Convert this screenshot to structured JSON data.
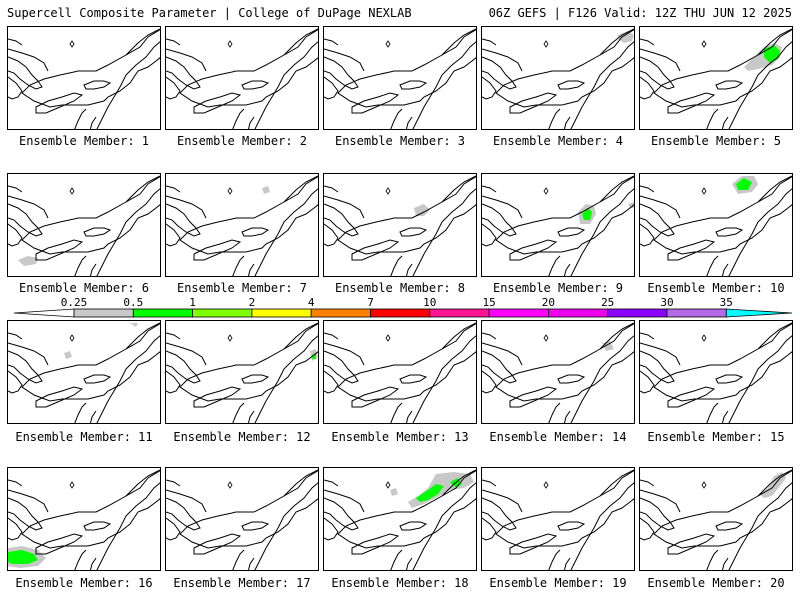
{
  "header": {
    "left_title": "Supercell Composite Parameter | College of DuPage NEXLAB",
    "right_title": "06Z GEFS | F126 Valid: 12Z THU JUN 12 2025"
  },
  "caption_prefix": "Ensemble Member:",
  "members": [
    {
      "num": "1",
      "label": "Ensemble Member: 1",
      "blobs": []
    },
    {
      "num": "2",
      "label": "Ensemble Member: 2",
      "blobs": []
    },
    {
      "num": "3",
      "label": "Ensemble Member: 3",
      "blobs": []
    },
    {
      "num": "4",
      "label": "Ensemble Member: 4",
      "blobs": [
        {
          "level": "0.25"
        }
      ]
    },
    {
      "num": "5",
      "label": "Ensemble Member: 5",
      "blobs": [
        {
          "level": "0.25"
        },
        {
          "level": "0.5"
        }
      ]
    },
    {
      "num": "6",
      "label": "Ensemble Member: 6",
      "blobs": [
        {
          "level": "0.25"
        }
      ]
    },
    {
      "num": "7",
      "label": "Ensemble Member: 7",
      "blobs": [
        {
          "level": "0.25"
        }
      ]
    },
    {
      "num": "8",
      "label": "Ensemble Member: 8",
      "blobs": [
        {
          "level": "0.25"
        }
      ]
    },
    {
      "num": "9",
      "label": "Ensemble Member: 9",
      "blobs": [
        {
          "level": "0.25"
        },
        {
          "level": "0.5"
        }
      ]
    },
    {
      "num": "10",
      "label": "Ensemble Member: 10",
      "blobs": [
        {
          "level": "0.25"
        },
        {
          "level": "0.5"
        }
      ]
    },
    {
      "num": "11",
      "label": "Ensemble Member: 11",
      "blobs": [
        {
          "level": "0.25"
        }
      ]
    },
    {
      "num": "12",
      "label": "Ensemble Member: 12",
      "blobs": [
        {
          "level": "0.25"
        },
        {
          "level": "0.5"
        }
      ]
    },
    {
      "num": "13",
      "label": "Ensemble Member: 13",
      "blobs": []
    },
    {
      "num": "14",
      "label": "Ensemble Member: 14",
      "blobs": [
        {
          "level": "0.25"
        }
      ]
    },
    {
      "num": "15",
      "label": "Ensemble Member: 15",
      "blobs": []
    },
    {
      "num": "16",
      "label": "Ensemble Member: 16",
      "blobs": [
        {
          "level": "0.25"
        },
        {
          "level": "0.5"
        }
      ]
    },
    {
      "num": "17",
      "label": "Ensemble Member: 17",
      "blobs": []
    },
    {
      "num": "18",
      "label": "Ensemble Member: 18",
      "blobs": [
        {
          "level": "0.25"
        },
        {
          "level": "0.5"
        }
      ]
    },
    {
      "num": "19",
      "label": "Ensemble Member: 19",
      "blobs": []
    },
    {
      "num": "20",
      "label": "Ensemble Member: 20",
      "blobs": [
        {
          "level": "0.25"
        }
      ]
    }
  ],
  "colorbar": {
    "levels": [
      "0.25",
      "0.5",
      "1",
      "2",
      "4",
      "7",
      "10",
      "15",
      "20",
      "25",
      "30",
      "35"
    ],
    "colors": [
      "#c8c8c8",
      "#00ff00",
      "#7fff00",
      "#ffff00",
      "#ff8000",
      "#ff0000",
      "#ff1493",
      "#ff00ff",
      "#ee00ee",
      "#8b00ff",
      "#b469e6",
      "#00ffff"
    ]
  }
}
